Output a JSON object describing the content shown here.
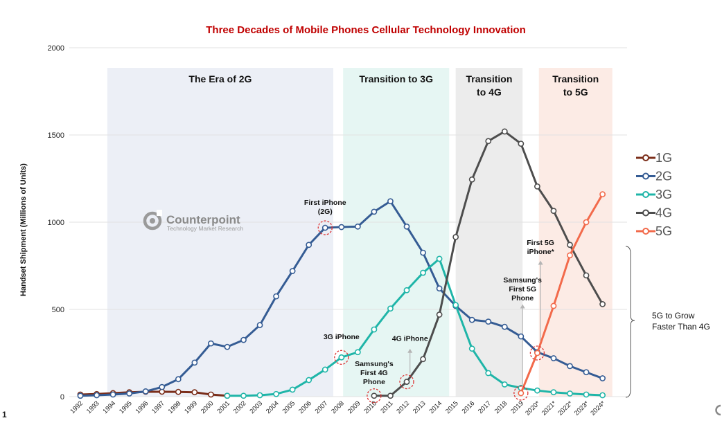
{
  "page_number": "1",
  "chart_data": {
    "type": "line",
    "title": "Three Decades of Mobile Phones Cellular Technology Innovation",
    "xlabel": "",
    "ylabel": "Handset Shipment (Millions of Units)",
    "ylim": [
      0,
      2000
    ],
    "yticks": [
      0,
      500,
      1000,
      1500,
      2000
    ],
    "grid": true,
    "legend_position": "right",
    "categories": [
      "1992",
      "1993",
      "1994",
      "1995",
      "1996",
      "1997",
      "1998",
      "1999",
      "2000",
      "2001",
      "2002",
      "2003",
      "2004",
      "2005",
      "2006",
      "2007",
      "2008",
      "2009",
      "2010",
      "2011",
      "2012",
      "2013",
      "2014",
      "2015",
      "2016",
      "2017",
      "2018",
      "2019",
      "2020*",
      "2021*",
      "2022*",
      "2023*",
      "2024*"
    ],
    "series": [
      {
        "name": "1G",
        "color": "#7b2e1a",
        "values": [
          12,
          15,
          20,
          25,
          28,
          28,
          27,
          25,
          12,
          5,
          null,
          null,
          null,
          null,
          null,
          null,
          null,
          null,
          null,
          null,
          null,
          null,
          null,
          null,
          null,
          null,
          null,
          null,
          null,
          null,
          null,
          null,
          null
        ]
      },
      {
        "name": "2G",
        "color": "#355c94",
        "values": [
          5,
          8,
          12,
          18,
          30,
          55,
          100,
          195,
          305,
          285,
          325,
          410,
          575,
          720,
          870,
          968,
          972,
          975,
          1060,
          1120,
          975,
          825,
          620,
          520,
          440,
          430,
          400,
          345,
          255,
          220,
          175,
          140,
          105
        ]
      },
      {
        "name": "3G",
        "color": "#1fb5a8",
        "values": [
          null,
          null,
          null,
          null,
          null,
          null,
          null,
          null,
          null,
          5,
          5,
          8,
          15,
          40,
          95,
          155,
          225,
          255,
          385,
          505,
          610,
          710,
          790,
          525,
          275,
          135,
          70,
          50,
          35,
          25,
          18,
          12,
          8
        ]
      },
      {
        "name": "4G",
        "color": "#4d4d4d",
        "values": [
          null,
          null,
          null,
          null,
          null,
          null,
          null,
          null,
          null,
          null,
          null,
          null,
          null,
          null,
          null,
          null,
          null,
          null,
          5,
          5,
          85,
          215,
          470,
          915,
          1245,
          1465,
          1520,
          1450,
          1205,
          1065,
          870,
          695,
          530
        ]
      },
      {
        "name": "5G",
        "color": "#f26a4b",
        "values": [
          null,
          null,
          null,
          null,
          null,
          null,
          null,
          null,
          null,
          null,
          null,
          null,
          null,
          null,
          null,
          null,
          null,
          null,
          null,
          null,
          null,
          null,
          null,
          null,
          null,
          null,
          null,
          20,
          250,
          520,
          810,
          1000,
          1160
        ]
      }
    ],
    "eras": [
      {
        "label": [
          "The Era of 2G"
        ],
        "start_index": 1.65,
        "end_index": 15.5,
        "color": "#eceff6"
      },
      {
        "label": [
          "Transition to 3G"
        ],
        "start_index": 16.1,
        "end_index": 22.6,
        "color": "#e6f6f3"
      },
      {
        "label": [
          "Transition",
          "to 4G"
        ],
        "start_index": 23.0,
        "end_index": 27.1,
        "color": "#ececec"
      },
      {
        "label": [
          "Transition",
          "to 5G"
        ],
        "start_index": 28.1,
        "end_index": 32.6,
        "color": "#fcebe5"
      }
    ],
    "annotations": [
      {
        "lines": [
          "First iPhone",
          "(2G)"
        ],
        "index": 15,
        "series": "2G",
        "value": 968,
        "circle": true,
        "label_index": 15,
        "label_value": 1100,
        "arrow": false
      },
      {
        "lines": [
          "3G iPhone"
        ],
        "index": 16,
        "series": "3G",
        "value": 225,
        "circle": true,
        "label_index": 16,
        "label_value": 330,
        "arrow": false
      },
      {
        "lines": [
          "Samsung's",
          "First 4G",
          "Phone"
        ],
        "index": 18,
        "series": "4G",
        "value": 5,
        "circle": true,
        "label_index": 18,
        "label_value": 175,
        "arrow": false
      },
      {
        "lines": [
          "4G iPhone"
        ],
        "index": 20,
        "series": "4G",
        "value": 85,
        "circle": true,
        "label_index": 20.2,
        "label_value": 320,
        "arrow": true,
        "arrow_top": 275
      },
      {
        "lines": [
          "Samsung's",
          "First 5G",
          "Phone"
        ],
        "index": 27,
        "series": "5G",
        "value": 20,
        "circle": true,
        "label_index": 27.1,
        "label_value": 655,
        "arrow": true,
        "arrow_top": 530
      },
      {
        "lines": [
          "First 5G",
          "iPhone*"
        ],
        "index": 28,
        "series": "5G",
        "value": 250,
        "circle": true,
        "label_index": 28.2,
        "label_value": 870,
        "arrow": true,
        "arrow_top": 780
      }
    ],
    "bracket_note": [
      "5G to Grow",
      "Faster Than 4G"
    ]
  },
  "logo": {
    "name": "Counterpoint",
    "tagline": "Technology Market Research",
    "icon": "counterpoint-logo-icon"
  },
  "corner_icon": "counterpoint-mark-icon"
}
